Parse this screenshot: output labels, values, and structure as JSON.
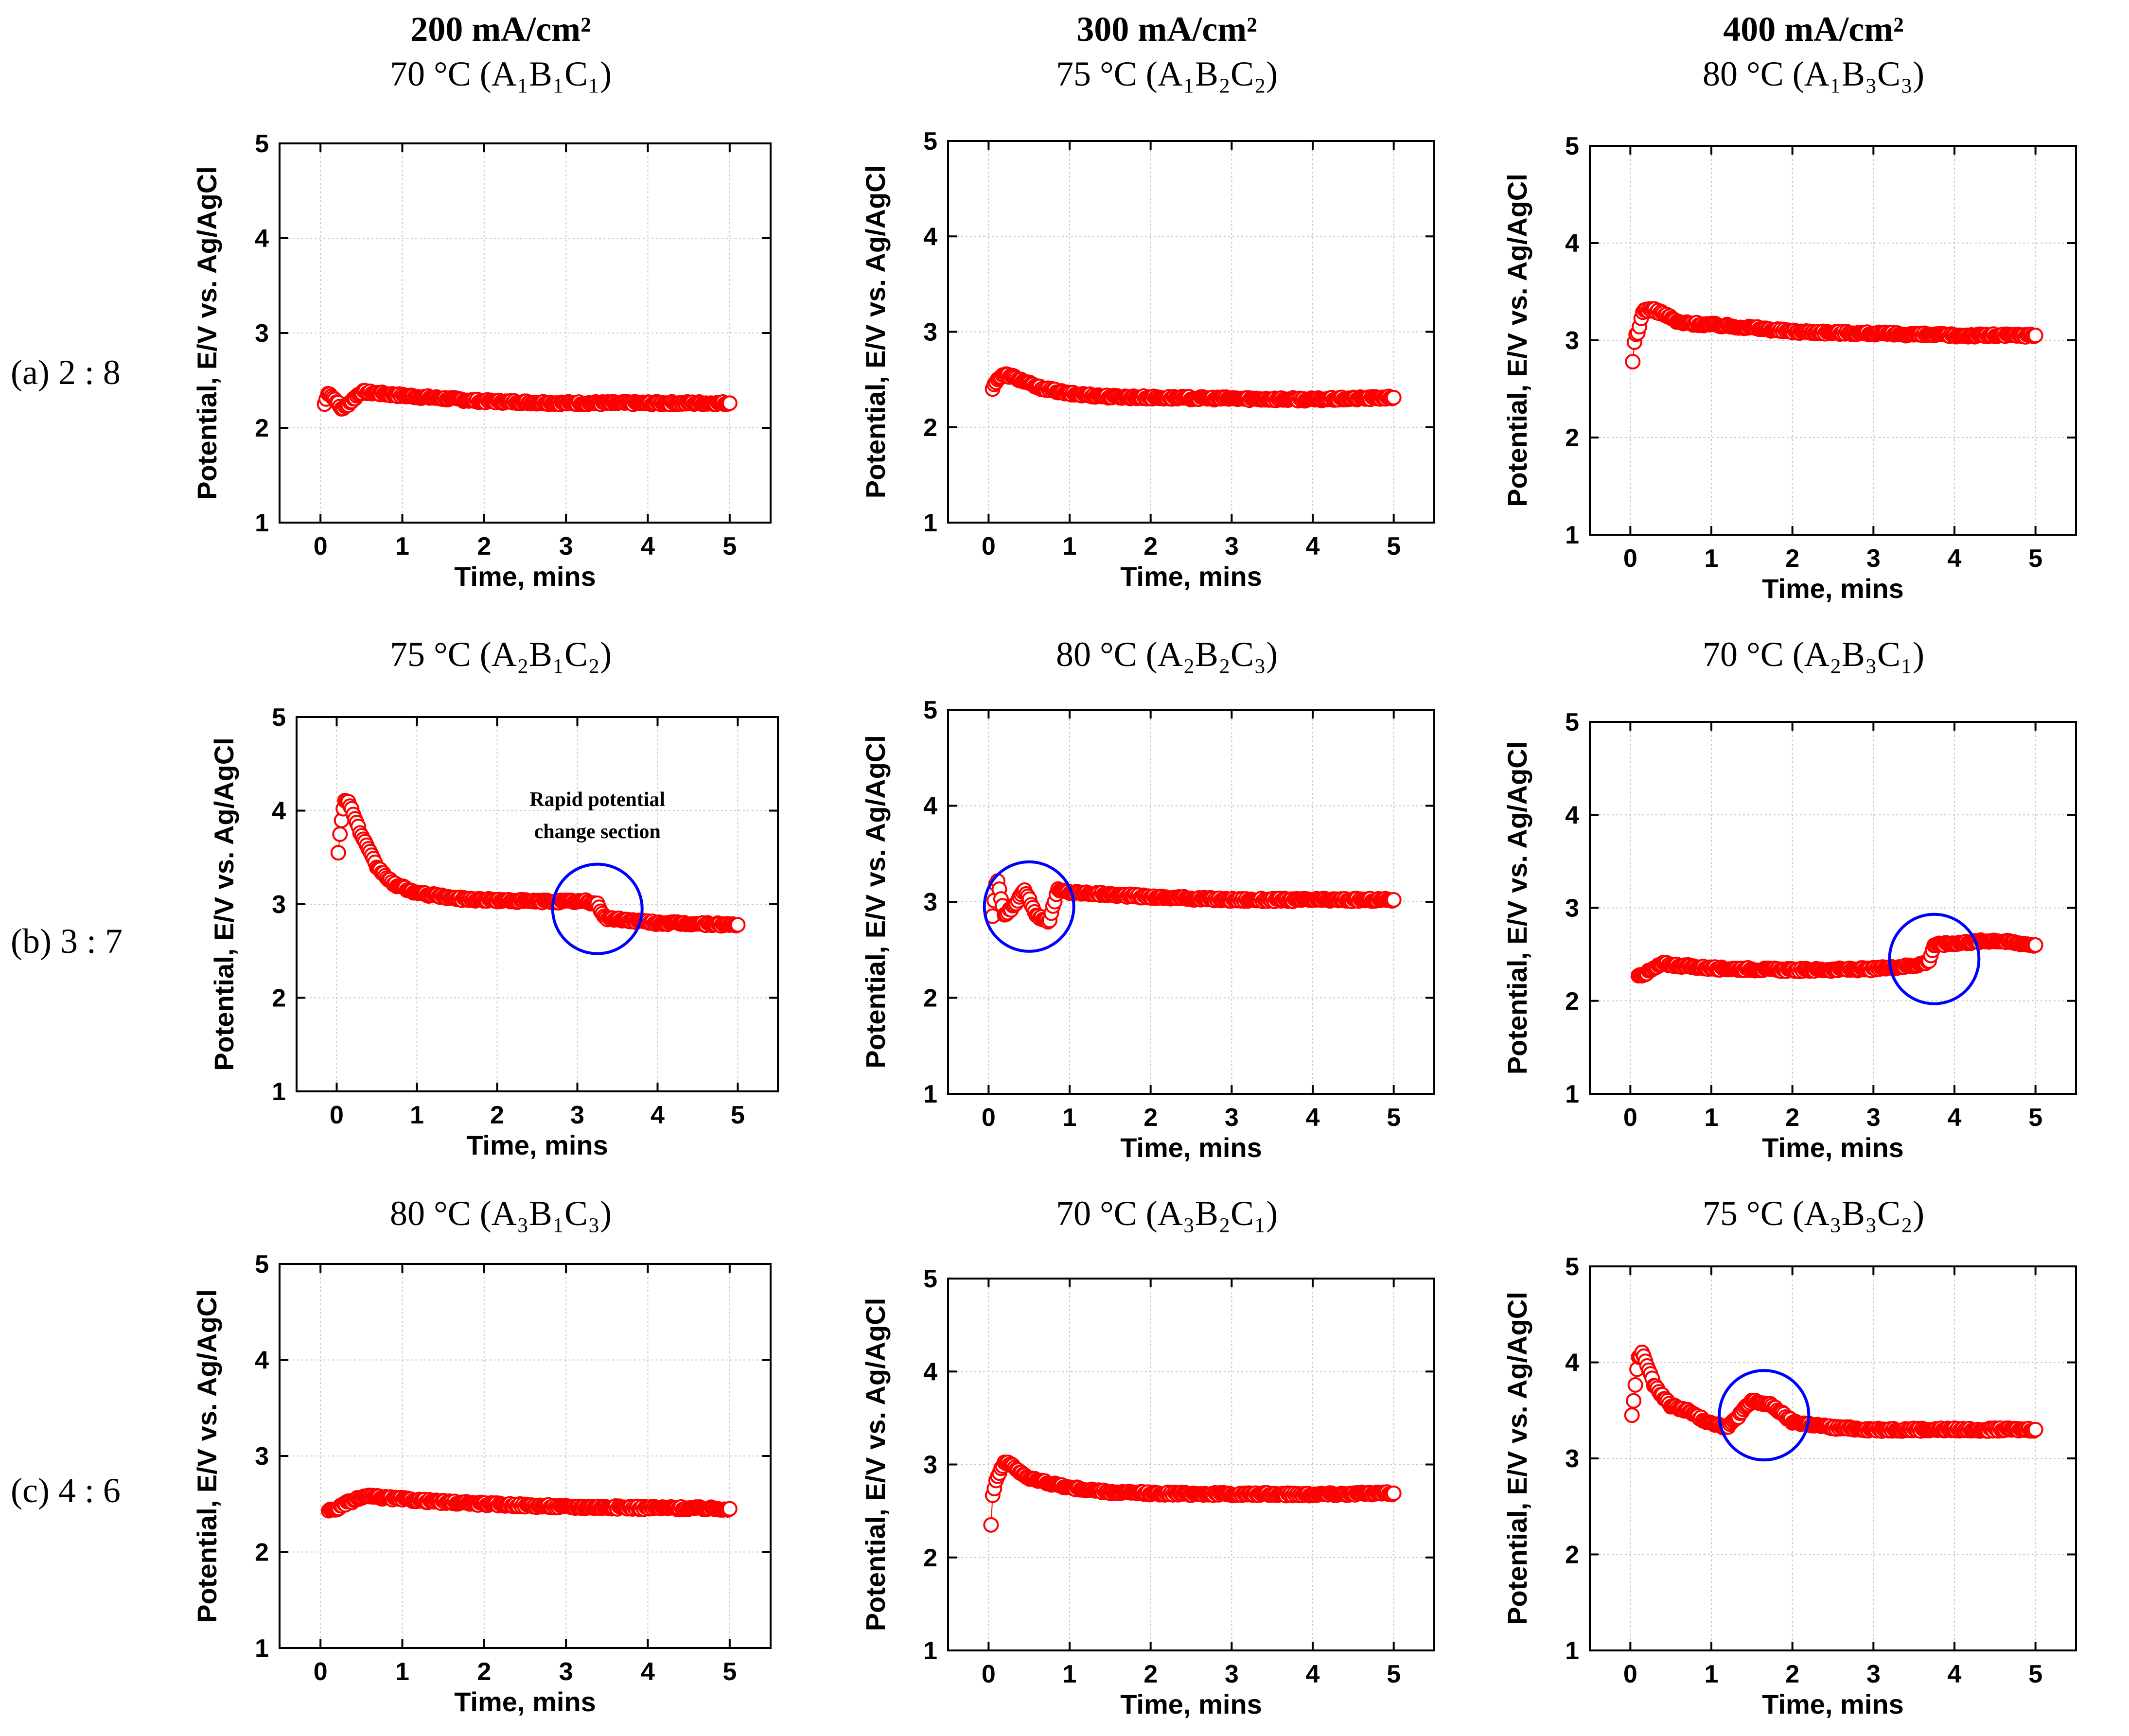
{
  "column_headers": [
    {
      "current": "200 mA/cm²",
      "cond": "70 °C (A₁B₁C₁)"
    },
    {
      "current": "300 mA/cm²",
      "cond": "75 °C (A₁B₂C₂)"
    },
    {
      "current": "400 mA/cm²",
      "cond": "80 °C (A₁B₃C₃)"
    }
  ],
  "row_labels": [
    "(a) 2 : 8",
    "(b) 3 : 7",
    "(c) 4 : 6"
  ],
  "panel_titles": [
    "",
    "",
    "",
    "75 °C (A₂B₁C₂)",
    "80 °C (A₂B₂C₃)",
    "70 °C (A₂B₃C₁)",
    "80 °C (A₃B₁C₃)",
    "70 °C (A₃B₂C₁)",
    "75 °C (A₃B₃C₂)"
  ],
  "colors": {
    "marker": "#ff0000",
    "circle": "#0000ff",
    "grid": "#c8c8c8"
  },
  "chart_data": [
    {
      "type": "scatter",
      "panel": "a1",
      "xlabel": "Time, mins",
      "ylabel": "Potential, E/V vs. Ag/AgCl",
      "xlim": [
        -0.5,
        5.5
      ],
      "ylim": [
        1,
        5
      ],
      "xticks": [
        0,
        1,
        2,
        3,
        4,
        5
      ],
      "yticks": [
        1,
        2,
        3,
        4,
        5
      ],
      "grid": true,
      "profile": [
        [
          0.05,
          2.25
        ],
        [
          0.1,
          2.38
        ],
        [
          0.15,
          2.32
        ],
        [
          0.2,
          2.28
        ],
        [
          0.25,
          2.2
        ],
        [
          0.3,
          2.22
        ],
        [
          0.4,
          2.3
        ],
        [
          0.5,
          2.38
        ],
        [
          1,
          2.34
        ],
        [
          1.5,
          2.31
        ],
        [
          2,
          2.28
        ],
        [
          3,
          2.26
        ],
        [
          4,
          2.26
        ],
        [
          5,
          2.26
        ]
      ]
    },
    {
      "type": "scatter",
      "panel": "a2",
      "xlabel": "Time, mins",
      "ylabel": "Potential, E/V vs. Ag/AgCl",
      "xlim": [
        -0.5,
        5.5
      ],
      "ylim": [
        1,
        5
      ],
      "xticks": [
        0,
        1,
        2,
        3,
        4,
        5
      ],
      "yticks": [
        1,
        2,
        3,
        4,
        5
      ],
      "grid": true,
      "profile": [
        [
          0.05,
          2.4
        ],
        [
          0.1,
          2.5
        ],
        [
          0.2,
          2.55
        ],
        [
          0.3,
          2.53
        ],
        [
          0.6,
          2.42
        ],
        [
          1,
          2.35
        ],
        [
          1.5,
          2.32
        ],
        [
          2,
          2.31
        ],
        [
          3,
          2.3
        ],
        [
          4,
          2.29
        ],
        [
          5,
          2.31
        ]
      ]
    },
    {
      "type": "scatter",
      "panel": "a3",
      "xlabel": "Time, mins",
      "ylabel": "Potential, E/V vs. Ag/AgCl",
      "xlim": [
        -0.5,
        5.5
      ],
      "ylim": [
        1,
        5
      ],
      "xticks": [
        0,
        1,
        2,
        3,
        4,
        5
      ],
      "yticks": [
        1,
        2,
        3,
        4,
        5
      ],
      "grid": true,
      "profile": [
        [
          0.03,
          2.78
        ],
        [
          0.06,
          3.05
        ],
        [
          0.1,
          3.08
        ],
        [
          0.15,
          3.3
        ],
        [
          0.25,
          3.32
        ],
        [
          0.4,
          3.28
        ],
        [
          0.6,
          3.18
        ],
        [
          1,
          3.16
        ],
        [
          1.5,
          3.13
        ],
        [
          2,
          3.09
        ],
        [
          3,
          3.07
        ],
        [
          4,
          3.05
        ],
        [
          5,
          3.05
        ]
      ]
    },
    {
      "type": "scatter",
      "panel": "b1",
      "xlabel": "Time, mins",
      "ylabel": "Potential, E/V vs. Ag/AgCl",
      "xlim": [
        -0.5,
        5.5
      ],
      "ylim": [
        1,
        5
      ],
      "xticks": [
        0,
        1,
        2,
        3,
        4,
        5
      ],
      "yticks": [
        1,
        2,
        3,
        4,
        5
      ],
      "grid": true,
      "annotation": "Rapid potential change section",
      "highlight": {
        "x": 3.25,
        "y": 2.95
      },
      "profile": [
        [
          0.02,
          3.55
        ],
        [
          0.05,
          3.85
        ],
        [
          0.1,
          4.1
        ],
        [
          0.15,
          4.1
        ],
        [
          0.3,
          3.75
        ],
        [
          0.5,
          3.4
        ],
        [
          0.7,
          3.22
        ],
        [
          1,
          3.12
        ],
        [
          1.5,
          3.06
        ],
        [
          2,
          3.04
        ],
        [
          2.5,
          3.03
        ],
        [
          3.1,
          3.03
        ],
        [
          3.25,
          3.0
        ],
        [
          3.35,
          2.85
        ],
        [
          4,
          2.8
        ],
        [
          5,
          2.78
        ]
      ]
    },
    {
      "type": "scatter",
      "panel": "b2",
      "xlabel": "Time, mins",
      "ylabel": "Potential, E/V vs. Ag/AgCl",
      "xlim": [
        -0.5,
        5.5
      ],
      "ylim": [
        1,
        5
      ],
      "xticks": [
        0,
        1,
        2,
        3,
        4,
        5
      ],
      "yticks": [
        1,
        2,
        3,
        4,
        5
      ],
      "grid": true,
      "highlight": {
        "x": 0.5,
        "y": 2.95
      },
      "profile": [
        [
          0.05,
          2.85
        ],
        [
          0.1,
          3.25
        ],
        [
          0.2,
          2.85
        ],
        [
          0.3,
          2.95
        ],
        [
          0.45,
          3.12
        ],
        [
          0.6,
          2.85
        ],
        [
          0.75,
          2.8
        ],
        [
          0.85,
          3.12
        ],
        [
          1,
          3.1
        ],
        [
          2,
          3.05
        ],
        [
          3,
          3.02
        ],
        [
          4,
          3.02
        ],
        [
          5,
          3.02
        ]
      ]
    },
    {
      "type": "scatter",
      "panel": "b3",
      "xlabel": "Time, mins",
      "ylabel": "Potential, E/V vs. Ag/AgCl",
      "xlim": [
        -0.5,
        5.5
      ],
      "ylim": [
        1,
        5
      ],
      "xticks": [
        0,
        1,
        2,
        3,
        4,
        5
      ],
      "yticks": [
        1,
        2,
        3,
        4,
        5
      ],
      "grid": true,
      "highlight": {
        "x": 3.75,
        "y": 2.45
      },
      "profile": [
        [
          0.1,
          2.27
        ],
        [
          0.2,
          2.3
        ],
        [
          0.4,
          2.4
        ],
        [
          0.6,
          2.38
        ],
        [
          1,
          2.35
        ],
        [
          2,
          2.33
        ],
        [
          3,
          2.34
        ],
        [
          3.5,
          2.38
        ],
        [
          3.68,
          2.42
        ],
        [
          3.75,
          2.6
        ],
        [
          4,
          2.62
        ],
        [
          4.5,
          2.65
        ],
        [
          5,
          2.6
        ]
      ]
    },
    {
      "type": "scatter",
      "panel": "c1",
      "xlabel": "Time, mins",
      "ylabel": "Potential, E/V vs. Ag/AgCl",
      "xlim": [
        -0.5,
        5.5
      ],
      "ylim": [
        1,
        5
      ],
      "xticks": [
        0,
        1,
        2,
        3,
        4,
        5
      ],
      "yticks": [
        1,
        2,
        3,
        4,
        5
      ],
      "grid": true,
      "profile": [
        [
          0.1,
          2.43
        ],
        [
          0.2,
          2.45
        ],
        [
          0.35,
          2.52
        ],
        [
          0.55,
          2.58
        ],
        [
          1,
          2.55
        ],
        [
          1.5,
          2.52
        ],
        [
          2,
          2.5
        ],
        [
          3,
          2.47
        ],
        [
          4,
          2.46
        ],
        [
          5,
          2.45
        ]
      ]
    },
    {
      "type": "scatter",
      "panel": "c2",
      "xlabel": "Time, mins",
      "ylabel": "Potential, E/V vs. Ag/AgCl",
      "xlim": [
        -0.5,
        5.5
      ],
      "ylim": [
        1,
        5
      ],
      "xticks": [
        0,
        1,
        2,
        3,
        4,
        5
      ],
      "yticks": [
        1,
        2,
        3,
        4,
        5
      ],
      "grid": true,
      "profile": [
        [
          0.03,
          2.35
        ],
        [
          0.05,
          2.68
        ],
        [
          0.1,
          2.85
        ],
        [
          0.15,
          2.95
        ],
        [
          0.2,
          3.03
        ],
        [
          0.3,
          2.98
        ],
        [
          0.5,
          2.85
        ],
        [
          1,
          2.75
        ],
        [
          1.5,
          2.7
        ],
        [
          2,
          2.69
        ],
        [
          3,
          2.68
        ],
        [
          4,
          2.68
        ],
        [
          5,
          2.69
        ]
      ]
    },
    {
      "type": "scatter",
      "panel": "c3",
      "xlabel": "Time, mins",
      "ylabel": "Potential, E/V vs. Ag/AgCl",
      "xlim": [
        -0.5,
        5.5
      ],
      "ylim": [
        1,
        5
      ],
      "xticks": [
        0,
        1,
        2,
        3,
        4,
        5
      ],
      "yticks": [
        1,
        2,
        3,
        4,
        5
      ],
      "grid": true,
      "highlight": {
        "x": 1.65,
        "y": 3.45
      },
      "profile": [
        [
          0.02,
          3.45
        ],
        [
          0.1,
          4.05
        ],
        [
          0.15,
          4.1
        ],
        [
          0.3,
          3.75
        ],
        [
          0.5,
          3.55
        ],
        [
          0.7,
          3.5
        ],
        [
          0.9,
          3.4
        ],
        [
          1.2,
          3.32
        ],
        [
          1.5,
          3.6
        ],
        [
          1.75,
          3.55
        ],
        [
          2,
          3.38
        ],
        [
          2.5,
          3.32
        ],
        [
          3,
          3.3
        ],
        [
          4,
          3.3
        ],
        [
          5,
          3.3
        ]
      ]
    }
  ]
}
